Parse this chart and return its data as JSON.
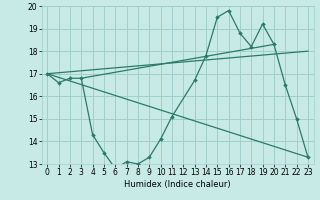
{
  "title": "",
  "xlabel": "Humidex (Indice chaleur)",
  "background_color": "#c8eae6",
  "grid_color": "#a0d0cc",
  "line_color": "#2a7a6a",
  "xlim": [
    -0.5,
    23.5
  ],
  "ylim": [
    13,
    20
  ],
  "xticks": [
    0,
    1,
    2,
    3,
    4,
    5,
    6,
    7,
    8,
    9,
    10,
    11,
    12,
    13,
    14,
    15,
    16,
    17,
    18,
    19,
    20,
    21,
    22,
    23
  ],
  "yticks": [
    13,
    14,
    15,
    16,
    17,
    18,
    19,
    20
  ],
  "series_main": {
    "x": [
      0,
      1,
      2,
      3,
      4,
      5,
      6,
      7,
      8,
      9,
      10,
      11,
      13,
      14,
      15,
      16,
      17,
      18,
      19,
      20,
      21,
      22,
      23
    ],
    "y": [
      17.0,
      16.6,
      16.8,
      16.8,
      14.3,
      13.5,
      12.8,
      13.1,
      13.0,
      13.3,
      14.1,
      15.1,
      16.7,
      17.8,
      19.5,
      19.8,
      18.8,
      18.2,
      19.2,
      18.3,
      16.5,
      15.0,
      13.3
    ]
  },
  "series_line1": {
    "x": [
      0,
      23
    ],
    "y": [
      17.0,
      13.3
    ]
  },
  "series_line2": {
    "x": [
      0,
      23
    ],
    "y": [
      17.0,
      18.0
    ]
  },
  "series_line3": {
    "x": [
      3,
      20
    ],
    "y": [
      16.8,
      18.3
    ]
  }
}
